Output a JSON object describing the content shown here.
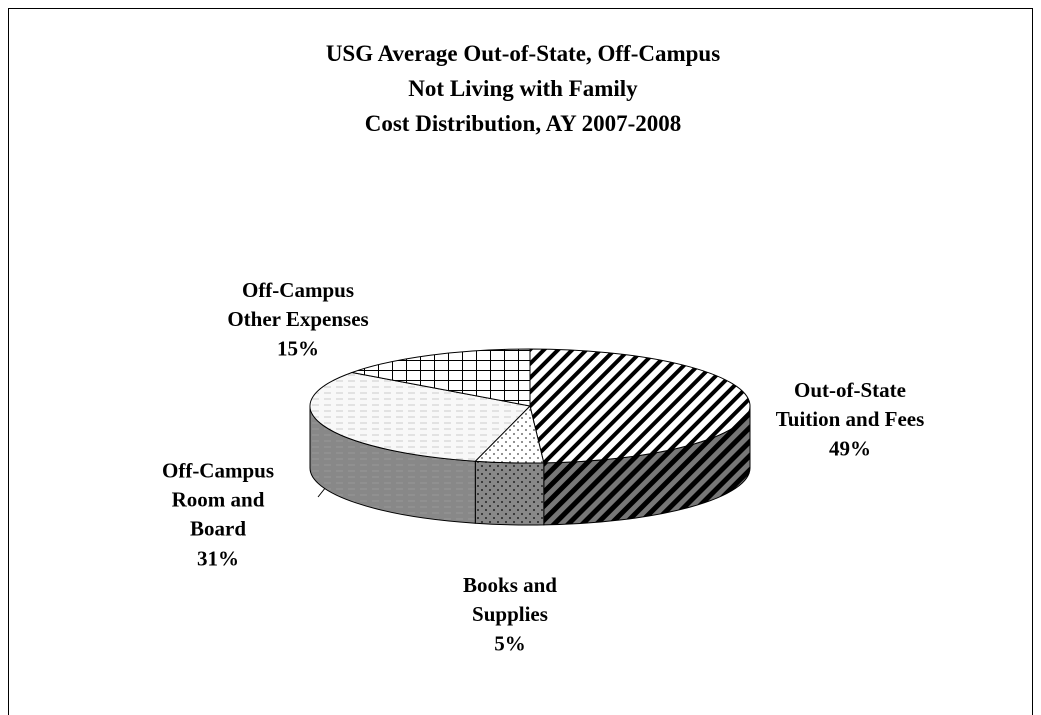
{
  "chart_data": {
    "type": "pie3d",
    "title": "USG Average Out-of-State, Off-Campus\nNot Living with Family\nCost Distribution, AY 2007-2008",
    "categories": [
      "Out-of-State\nTuition and Fees",
      "Books and\nSupplies",
      "Off-Campus\nRoom and\nBoard",
      "Off-Campus\nOther Expenses"
    ],
    "values": [
      49,
      5,
      31,
      15
    ],
    "value_labels": [
      "49%",
      "5%",
      "31%",
      "15%"
    ]
  }
}
